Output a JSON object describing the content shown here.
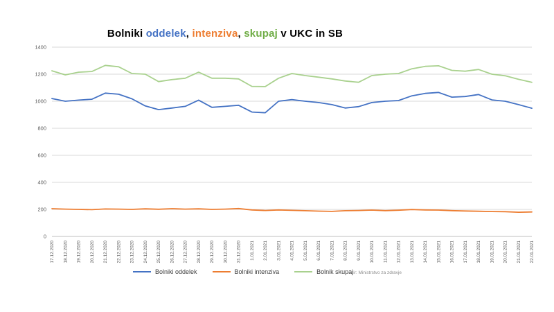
{
  "title": {
    "parts": [
      {
        "text": "Bolniki ",
        "color": "#000000"
      },
      {
        "text": "oddelek",
        "color": "#4472C4"
      },
      {
        "text": ", ",
        "color": "#000000"
      },
      {
        "text": "intenziva",
        "color": "#ED7D31"
      },
      {
        "text": ", ",
        "color": "#000000"
      },
      {
        "text": "skupaj",
        "color": "#70AD47"
      },
      {
        "text": " v UKC in SB",
        "color": "#000000"
      }
    ]
  },
  "source": "vir: Ministrstvo za zdravje",
  "chart_data": {
    "type": "line",
    "title": "Bolniki oddelek, intenziva, skupaj v UKC in SB",
    "xlabel": "",
    "ylabel": "",
    "ylim": [
      0,
      1400
    ],
    "yticks": [
      0,
      200,
      400,
      600,
      800,
      1000,
      1200,
      1400
    ],
    "grid": true,
    "legend_position": "bottom",
    "categories": [
      "17.12.2020",
      "18.12.2020",
      "19.12.2020",
      "20.12.2020",
      "21.12.2020",
      "22.12.2020",
      "23.12.2020",
      "24.12.2020",
      "25.12.2020",
      "26.12.2020",
      "27.12.2020",
      "28.12.2020",
      "29.12.2020",
      "30.12.2020",
      "31.12.2020",
      "1.01.2021",
      "2.01.2021",
      "3.01.2021",
      "4.01.2021",
      "5.01.2021",
      "6.01.2021",
      "7.01.2021",
      "8.01.2021",
      "9.01.2021",
      "10.01.2021",
      "11.01.2021",
      "12.01.2021",
      "13.01.2021",
      "14.01.2021",
      "15.01.2021",
      "16.01.2021",
      "17.01.2021",
      "18.01.2021",
      "19.01.2021",
      "20.01.2021",
      "21.01.2021",
      "22.01.2021"
    ],
    "series": [
      {
        "name": "Bolniki oddelek",
        "color": "#4472C4",
        "values": [
          1020,
          1000,
          1008,
          1015,
          1060,
          1052,
          1018,
          965,
          938,
          950,
          962,
          1008,
          955,
          962,
          970,
          920,
          915,
          1000,
          1012,
          1000,
          990,
          975,
          950,
          960,
          990,
          1000,
          1005,
          1040,
          1058,
          1065,
          1030,
          1035,
          1050,
          1010,
          1000,
          975,
          948
        ]
      },
      {
        "name": "Bolniki intenziva",
        "color": "#ED7D31",
        "values": [
          205,
          202,
          200,
          198,
          203,
          202,
          200,
          204,
          201,
          205,
          202,
          204,
          200,
          202,
          206,
          196,
          192,
          196,
          193,
          190,
          187,
          185,
          190,
          192,
          195,
          191,
          194,
          199,
          196,
          195,
          191,
          188,
          186,
          184,
          183,
          179,
          181
        ]
      },
      {
        "name": "Bolnik skupaj",
        "color": "#A9D18E",
        "values": [
          1225,
          1195,
          1215,
          1220,
          1265,
          1255,
          1205,
          1200,
          1145,
          1160,
          1170,
          1215,
          1170,
          1170,
          1165,
          1110,
          1108,
          1170,
          1205,
          1190,
          1178,
          1165,
          1150,
          1140,
          1190,
          1200,
          1205,
          1240,
          1258,
          1262,
          1228,
          1222,
          1235,
          1200,
          1188,
          1162,
          1140
        ]
      }
    ]
  }
}
